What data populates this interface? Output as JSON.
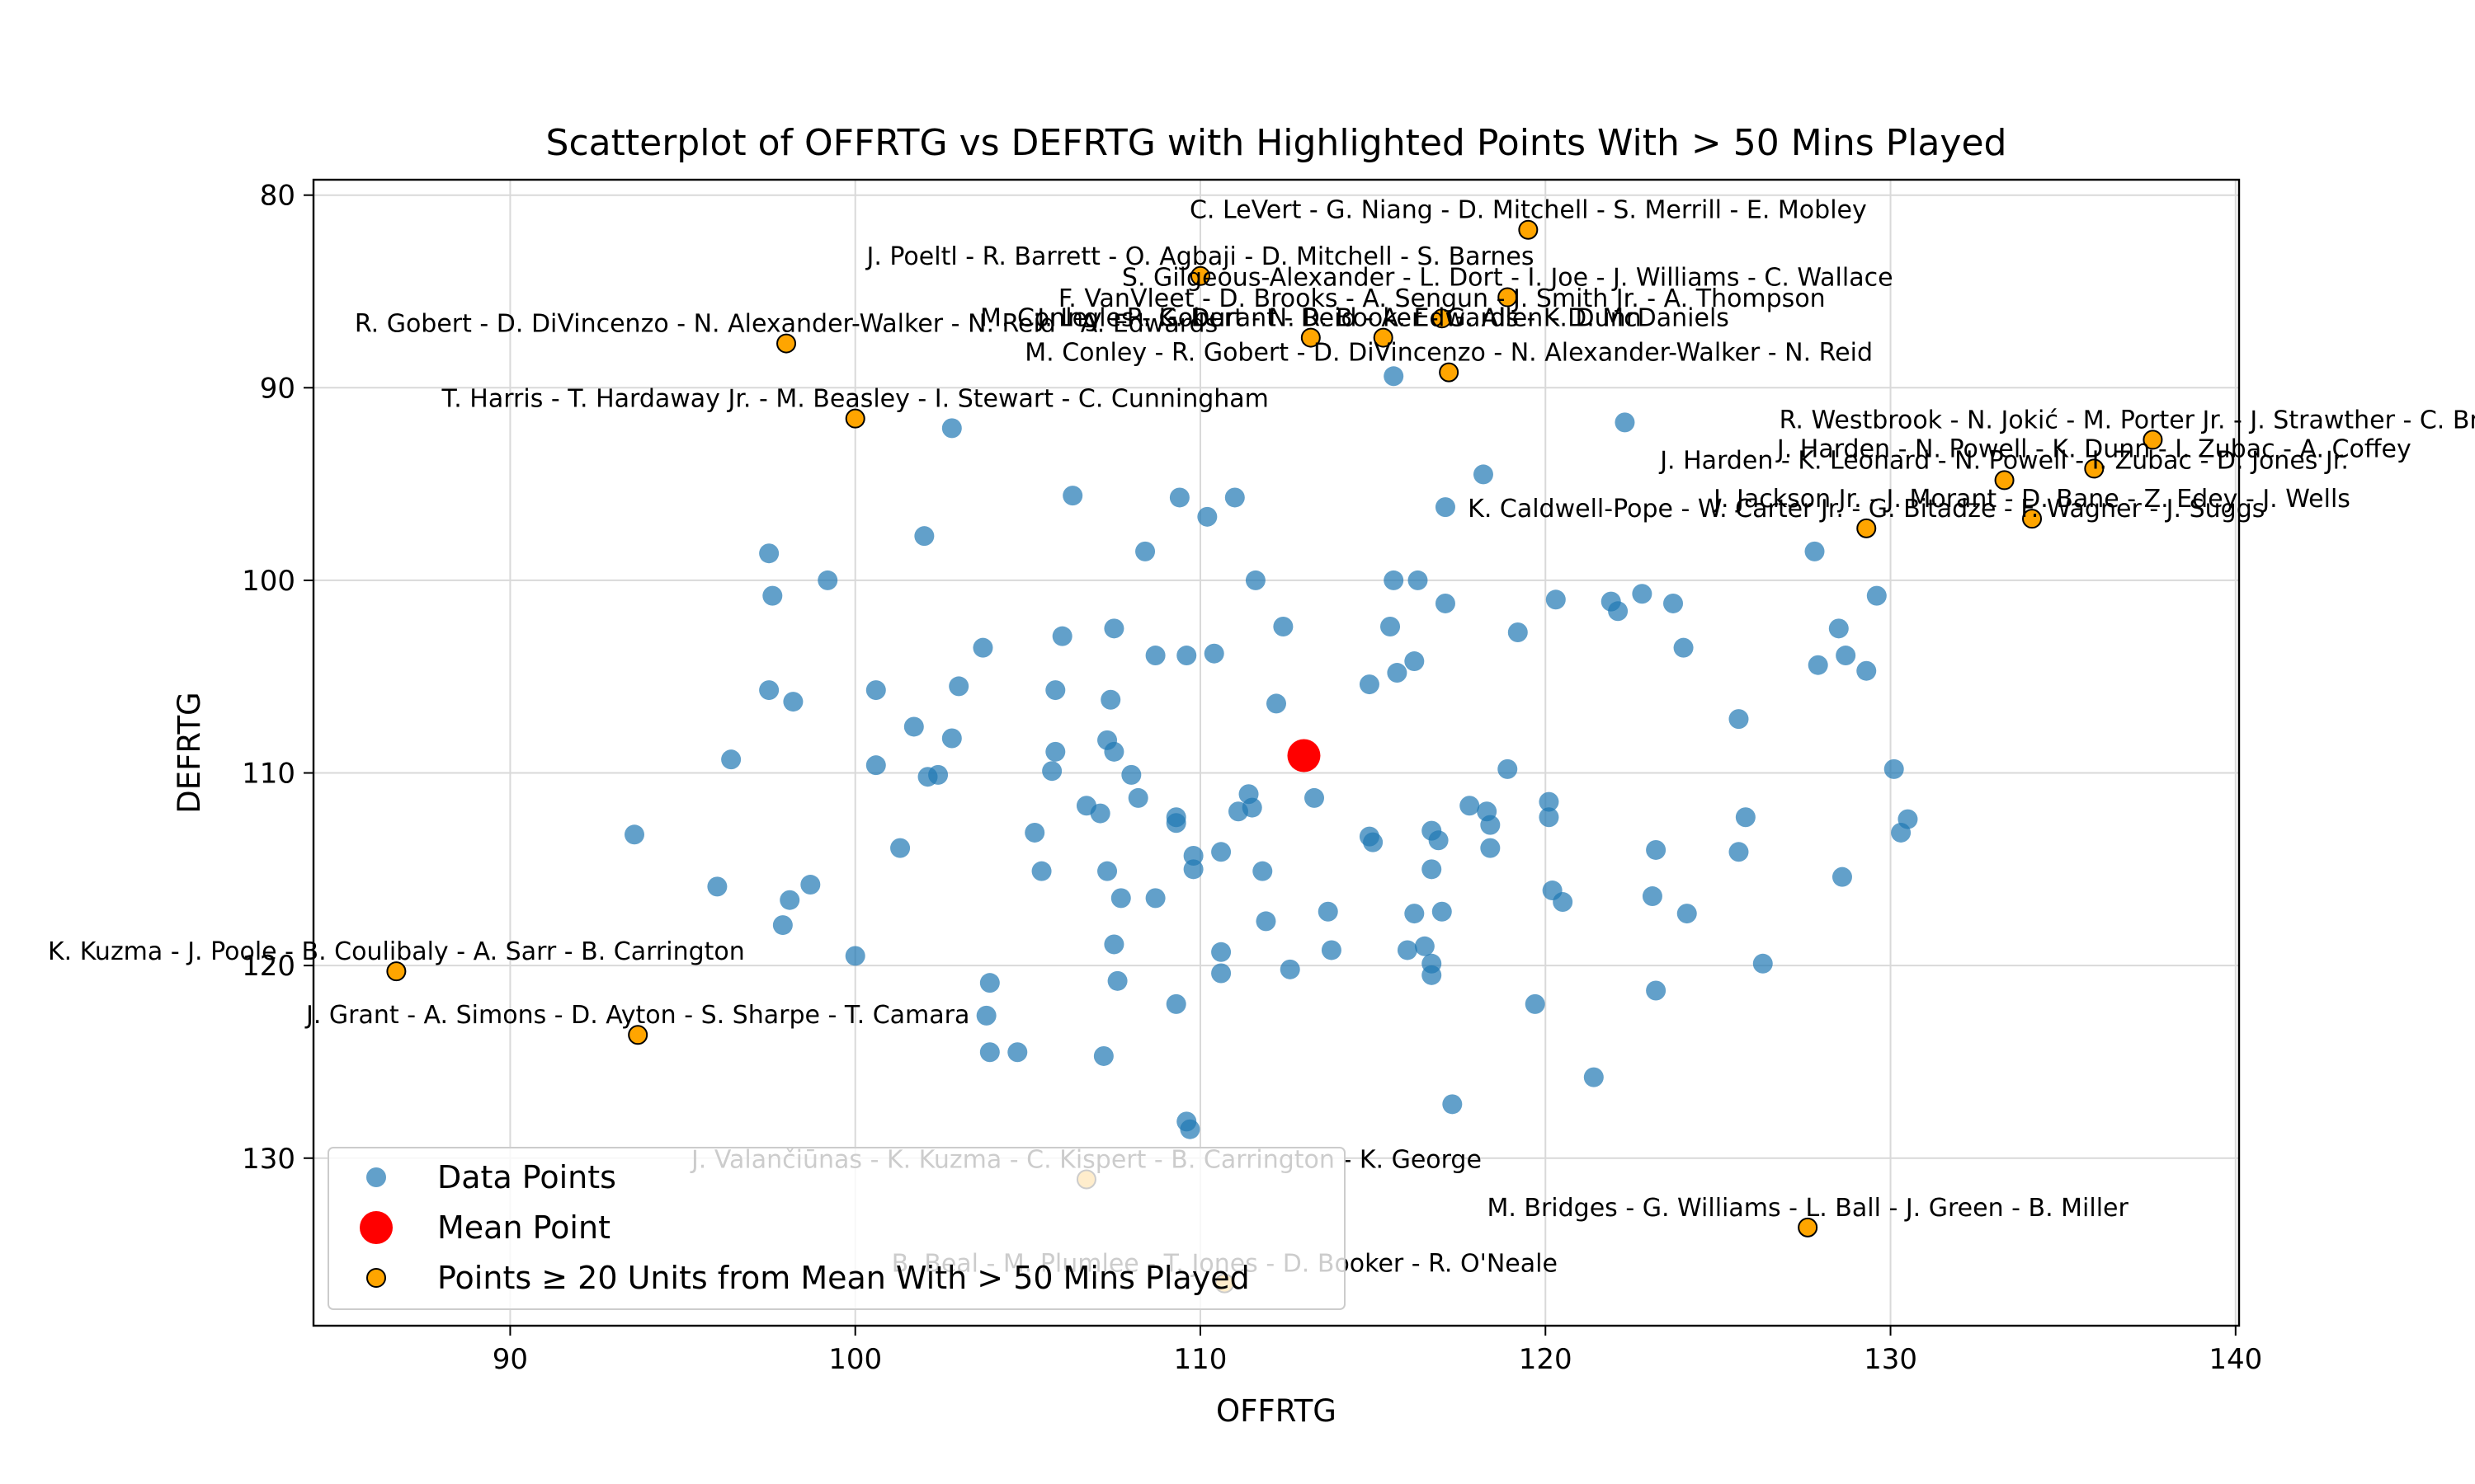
{
  "chart_data": {
    "type": "scatter",
    "title": "Scatterplot of OFFRTG vs DEFRTG with Highlighted Points With > 50 Mins Played",
    "xlabel": "OFFRTG",
    "ylabel": "DEFRTG",
    "xlim": [
      84.3,
      140.1
    ],
    "ylim": [
      138.7,
      79.2
    ],
    "y_inverted": true,
    "xticks": [
      90,
      100,
      110,
      120,
      130,
      140
    ],
    "yticks": [
      80,
      90,
      100,
      110,
      120,
      130
    ],
    "grid": true,
    "legend_position": "lower-left",
    "colors": {
      "data_points": "#1f77b4",
      "mean_point": "#ff0000",
      "highlighted": "#ffa500",
      "highlight_edge": "#000000",
      "grid": "#d9d9d9"
    },
    "series": [
      {
        "name": "Data Points",
        "points": [
          [
            97.5,
            98.6
          ],
          [
            97.6,
            100.8
          ],
          [
            99.2,
            100.0
          ],
          [
            97.5,
            105.7
          ],
          [
            98.2,
            106.3
          ],
          [
            96.4,
            109.3
          ],
          [
            93.6,
            113.2
          ],
          [
            96.0,
            115.9
          ],
          [
            98.1,
            116.6
          ],
          [
            98.7,
            115.8
          ],
          [
            97.9,
            117.9
          ],
          [
            100.0,
            119.5
          ],
          [
            100.6,
            105.7
          ],
          [
            100.6,
            109.6
          ],
          [
            101.3,
            113.9
          ],
          [
            101.7,
            107.6
          ],
          [
            102.1,
            110.2
          ],
          [
            102.4,
            110.1
          ],
          [
            102.8,
            108.2
          ],
          [
            103.0,
            105.5
          ],
          [
            102.0,
            97.7
          ],
          [
            102.8,
            92.1
          ],
          [
            103.7,
            103.5
          ],
          [
            103.9,
            120.9
          ],
          [
            103.8,
            122.6
          ],
          [
            103.9,
            124.5
          ],
          [
            104.7,
            124.5
          ],
          [
            105.2,
            113.1
          ],
          [
            105.4,
            115.1
          ],
          [
            105.7,
            109.9
          ],
          [
            105.8,
            108.9
          ],
          [
            105.8,
            105.7
          ],
          [
            106.0,
            102.9
          ],
          [
            106.3,
            95.6
          ],
          [
            106.7,
            111.7
          ],
          [
            107.1,
            112.1
          ],
          [
            107.3,
            115.1
          ],
          [
            107.3,
            108.3
          ],
          [
            107.4,
            106.2
          ],
          [
            107.5,
            102.5
          ],
          [
            107.5,
            108.9
          ],
          [
            107.5,
            118.9
          ],
          [
            107.6,
            120.8
          ],
          [
            107.2,
            124.7
          ],
          [
            107.7,
            116.5
          ],
          [
            108.0,
            110.1
          ],
          [
            108.2,
            111.3
          ],
          [
            108.4,
            98.5
          ],
          [
            108.7,
            103.9
          ],
          [
            108.7,
            116.5
          ],
          [
            109.3,
            112.3
          ],
          [
            109.3,
            112.6
          ],
          [
            109.3,
            122.0
          ],
          [
            109.4,
            95.7
          ],
          [
            109.6,
            103.9
          ],
          [
            109.6,
            128.1
          ],
          [
            109.7,
            128.5
          ],
          [
            109.8,
            114.3
          ],
          [
            109.8,
            115.0
          ],
          [
            110.2,
            96.7
          ],
          [
            110.4,
            103.8
          ],
          [
            110.6,
            114.1
          ],
          [
            110.6,
            119.3
          ],
          [
            110.6,
            120.4
          ],
          [
            111.0,
            95.7
          ],
          [
            111.1,
            112.0
          ],
          [
            111.4,
            111.1
          ],
          [
            111.5,
            111.8
          ],
          [
            111.6,
            100.0
          ],
          [
            111.8,
            115.1
          ],
          [
            111.9,
            117.7
          ],
          [
            112.2,
            106.4
          ],
          [
            112.4,
            102.4
          ],
          [
            112.6,
            120.2
          ],
          [
            113.3,
            111.3
          ],
          [
            113.7,
            117.2
          ],
          [
            113.8,
            119.2
          ],
          [
            114.9,
            105.4
          ],
          [
            115.0,
            113.6
          ],
          [
            114.9,
            113.3
          ],
          [
            115.6,
            89.4
          ],
          [
            115.5,
            102.4
          ],
          [
            115.6,
            100.0
          ],
          [
            115.7,
            104.8
          ],
          [
            116.0,
            119.2
          ],
          [
            116.2,
            117.3
          ],
          [
            116.2,
            104.2
          ],
          [
            116.3,
            100.0
          ],
          [
            116.5,
            119.0
          ],
          [
            116.7,
            113.0
          ],
          [
            116.7,
            115.0
          ],
          [
            116.7,
            119.9
          ],
          [
            116.7,
            120.5
          ],
          [
            116.9,
            113.5
          ],
          [
            117.0,
            117.2
          ],
          [
            117.1,
            101.2
          ],
          [
            117.1,
            96.2
          ],
          [
            117.3,
            127.2
          ],
          [
            117.8,
            111.7
          ],
          [
            118.2,
            94.5
          ],
          [
            118.3,
            112.0
          ],
          [
            118.4,
            112.7
          ],
          [
            118.4,
            113.9
          ],
          [
            118.9,
            109.8
          ],
          [
            119.2,
            102.7
          ],
          [
            119.7,
            122.0
          ],
          [
            120.1,
            111.5
          ],
          [
            120.1,
            112.3
          ],
          [
            120.2,
            116.1
          ],
          [
            120.3,
            101.0
          ],
          [
            120.5,
            116.7
          ],
          [
            121.4,
            125.8
          ],
          [
            121.9,
            101.1
          ],
          [
            122.1,
            101.6
          ],
          [
            122.3,
            91.8
          ],
          [
            122.8,
            100.7
          ],
          [
            123.1,
            116.4
          ],
          [
            123.2,
            114.0
          ],
          [
            123.2,
            121.3
          ],
          [
            123.7,
            101.2
          ],
          [
            124.0,
            103.5
          ],
          [
            124.1,
            117.3
          ],
          [
            125.6,
            107.2
          ],
          [
            125.6,
            114.1
          ],
          [
            125.8,
            112.3
          ],
          [
            126.3,
            119.9
          ],
          [
            127.8,
            98.5
          ],
          [
            127.9,
            104.4
          ],
          [
            128.5,
            102.5
          ],
          [
            128.6,
            115.4
          ],
          [
            128.7,
            103.9
          ],
          [
            129.3,
            104.7
          ],
          [
            129.6,
            100.8
          ],
          [
            130.1,
            109.8
          ],
          [
            130.3,
            113.1
          ],
          [
            130.5,
            112.4
          ]
        ]
      },
      {
        "name": "Mean Point",
        "points": [
          [
            113.0,
            109.1
          ]
        ]
      },
      {
        "name": "Points ≥ 20 Units from Mean With > 50 Mins Played",
        "points": [
          {
            "x": 119.5,
            "y": 81.8,
            "label": "C. LeVert - G. Niang - D. Mitchell - S. Merrill - E. Mobley"
          },
          {
            "x": 110.0,
            "y": 84.2,
            "label": "J. Poeltl - R. Barrett - O. Agbaji - D. Mitchell - S. Barnes"
          },
          {
            "x": 118.9,
            "y": 85.3,
            "label": "S. Gilgeous-Alexander - L. Dort - I. Joe - J. Williams - C. Wallace"
          },
          {
            "x": 117.0,
            "y": 86.4,
            "label": "F. VanVleet - D. Brooks - A. Sengun - J. Smith Jr. - A. Thompson"
          },
          {
            "x": 115.3,
            "y": 87.4,
            "label": "J. Ingles - K. Durant - D. Booker - G. Allen - D. McDaniels"
          },
          {
            "x": 113.2,
            "y": 87.4,
            "label": "M. Conley - R. Gobert - N. Reid - A. Edwards - K. Dunn"
          },
          {
            "x": 117.2,
            "y": 89.2,
            "label": "M. Conley - R. Gobert - D. DiVincenzo - N. Alexander-Walker - N. Reid"
          },
          {
            "x": 98.0,
            "y": 87.7,
            "label": "R. Gobert - D. DiVincenzo - N. Alexander-Walker - N. Reid - A. Edwards"
          },
          {
            "x": 100.0,
            "y": 91.6,
            "label": "T. Harris - T. Hardaway Jr. - M. Beasley - I. Stewart - C. Cunningham"
          },
          {
            "x": 137.6,
            "y": 92.7,
            "label": "R. Westbrook - N. Jokić - M. Porter Jr. - J. Strawther - C. Braun"
          },
          {
            "x": 135.9,
            "y": 94.2,
            "label": "J. Harden - N. Powell - K. Dunn - I. Zubac - A. Coffey"
          },
          {
            "x": 133.3,
            "y": 94.8,
            "label": "J. Harden - K. Leonard - N. Powell - I. Zubac - D. Jones Jr."
          },
          {
            "x": 134.1,
            "y": 96.8,
            "label": "J. Jackson Jr. - J. Morant - D. Bane - Z. Edey - J. Wells"
          },
          {
            "x": 129.3,
            "y": 97.3,
            "label": "K. Caldwell-Pope - W. Carter Jr. - G. Bitadze - F. Wagner - J. Suggs"
          },
          {
            "x": 86.7,
            "y": 120.3,
            "label": "K. Kuzma - J. Poole - B. Coulibaly - A. Sarr - B. Carrington"
          },
          {
            "x": 93.7,
            "y": 123.6,
            "label": "J. Grant - A. Simons - D. Ayton - S. Sharpe - T. Camara"
          },
          {
            "x": 106.7,
            "y": 131.1,
            "label": "J. Valančiūnas - K. Kuzma - C. Kispert - B. Carrington - K. George"
          },
          {
            "x": 110.7,
            "y": 136.5,
            "label": "B. Beal - M. Plumlee - T. Jones - D. Booker - R. O'Neale"
          },
          {
            "x": 127.6,
            "y": 133.6,
            "label": "M. Bridges - G. Williams - L. Ball - J. Green - B. Miller"
          }
        ]
      }
    ]
  }
}
